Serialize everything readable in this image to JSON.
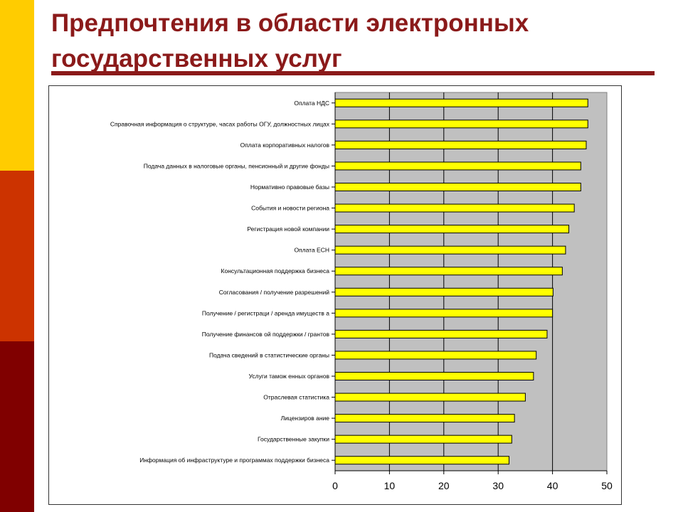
{
  "slide": {
    "title_line1": "Предпочтения в области электронных",
    "title_line2": "государственных услуг"
  },
  "colors": {
    "band_top": "#ffcc00",
    "band_middle": "#cc3300",
    "band_bottom": "#800000",
    "title": "#8b1a1a",
    "plot_background": "#c0c0c0",
    "bar_fill": "#ffff00",
    "bar_stroke": "#000000"
  },
  "chart_data": {
    "type": "bar",
    "orientation": "horizontal",
    "title": "",
    "xlabel": "",
    "ylabel": "",
    "xlim": [
      0,
      50
    ],
    "x_ticks": [
      "0",
      "10",
      "20",
      "30",
      "40",
      "50"
    ],
    "grid": true,
    "legend": "none",
    "categories": [
      "Оплата НДС",
      "Справочная информация о структуре, часах работы ОГУ, должностных лицах",
      "Оплата корпоративных налогов",
      "Подача данных в налоговые органы, пенсионный и другие фонды",
      "Нормативно правовые базы",
      "События и новости региона",
      "Регистрация новой компании",
      "Оплата ЕСН",
      "Консультационная поддержка бизнеса",
      "Согласования / получение разрешений",
      "Получение / регистраци / аренда имуществ а",
      "Получение финансов ой поддержки / грантов",
      "Подача сведений в статистические органы",
      "Услуги тамож енных органов",
      "Отраслевая статистика",
      "Лицензиров ание",
      "Государственные закупки",
      "Информация об инфраструктуре и программах поддержки бизнеса"
    ],
    "values": [
      46.5,
      46.5,
      46.2,
      45.2,
      45.2,
      44.0,
      43.0,
      42.4,
      41.8,
      40.1,
      40.0,
      39.0,
      37.0,
      36.5,
      35.0,
      33.0,
      32.5,
      32.0
    ]
  }
}
